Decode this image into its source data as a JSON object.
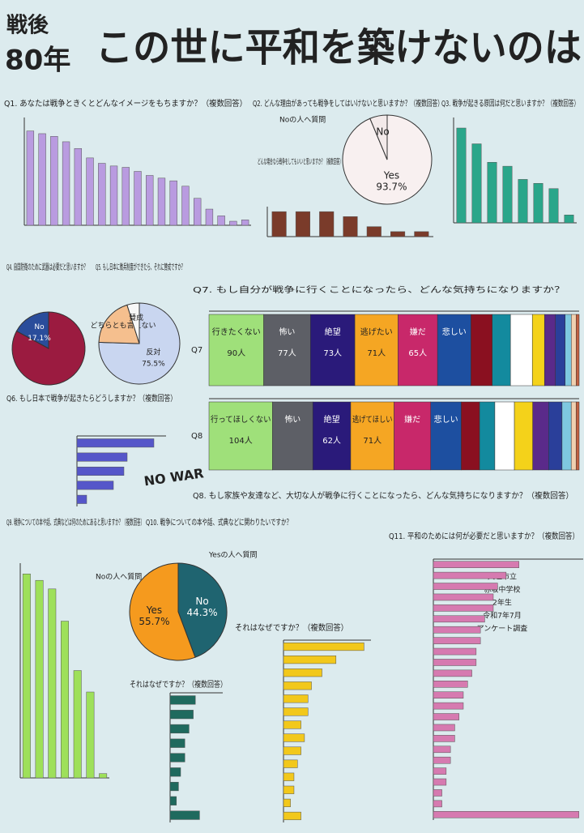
{
  "header": {
    "line1": "戦後",
    "line2": "80年",
    "main": "この世に平和を築けないのは"
  },
  "notes": {
    "q2_no": "Noの人へ質問",
    "q2_sub": "どんな場合なら戦争をしてもいいと思いますか？（複数回答）",
    "q6_stamp": "NO WAR",
    "q10_yes": "Yesの人へ質問",
    "q10_no": "Noの人へ質問",
    "school": [
      "大垣市立",
      "赤坂中学校",
      "2年生",
      "令和7年7月",
      "アンケート調査"
    ]
  },
  "chart_data": [
    {
      "type": "bar",
      "title": "Q1. あなたは戦争ときくとどんなイメージをもちますか？（複数回答）",
      "color": "#b99be0",
      "values": [
        70,
        68,
        66,
        62,
        57,
        50,
        46,
        44,
        43,
        40,
        37,
        35,
        33,
        29,
        20,
        12,
        7,
        3,
        4
      ],
      "ylim": [
        0,
        80
      ]
    },
    {
      "type": "pie",
      "title": "Q2. どんな理由があっても戦争をしてはいけないと思いますか？（複数回答）",
      "categories": [
        "Yes",
        "No"
      ],
      "values": [
        93.7,
        6.3
      ],
      "value_labels": [
        "93.7%",
        null
      ],
      "colors": [
        "#f8f0f0",
        "#f3eaea"
      ]
    },
    {
      "type": "bar",
      "color": "#7a3b2a",
      "values": [
        5,
        5,
        5,
        4,
        2,
        1,
        1
      ],
      "ylim": [
        0,
        6
      ]
    },
    {
      "type": "bar",
      "title": "Q3. 戦争が起きる原因は何だと思いますか？（複数回答）",
      "color": "#2aa68a",
      "values": [
        72,
        60,
        46,
        43,
        33,
        30,
        26,
        6
      ],
      "ylim": [
        0,
        80
      ]
    },
    {
      "type": "pie",
      "title": "Q4. 自国防衛のために武器は必要だと思いますか？",
      "categories": [
        null,
        "No"
      ],
      "values": [
        82.9,
        17.1
      ],
      "value_labels": [
        null,
        "17.1%"
      ],
      "colors": [
        "#9b1b40",
        "#2a4d9b"
      ]
    },
    {
      "type": "pie",
      "title": "Q5. もし日本に徴兵制度ができたら、それに賛成ですか？",
      "categories": [
        "反対",
        "どちらとも言えない",
        "賛成"
      ],
      "values": [
        75.5,
        19.6,
        4.9
      ],
      "value_labels": [
        "75.5%",
        null,
        null
      ],
      "colors": [
        "#c9d6f0",
        "#f5bf8e",
        "#f7f7f7"
      ]
    },
    {
      "type": "hbar",
      "title": "Q6. もし日本で戦争が起きたらどうしますか？（複数回答）",
      "color": "#5556c9",
      "values": [
        95,
        62,
        58,
        45,
        12
      ],
      "xlim": [
        0,
        110
      ]
    },
    {
      "type": "stacked_hbar",
      "title": "Q7. もし自分が戦争に行くことになったら、どんな気持ちになりますか？",
      "row_label": "Q7",
      "categories": [
        "行きたくない",
        "怖い",
        "絶望",
        "逃げたい",
        "嫌だ",
        "悲しい",
        null,
        null,
        null,
        null,
        null,
        null,
        null,
        null,
        null
      ],
      "values": [
        90,
        77,
        73,
        71,
        65,
        55,
        35,
        30,
        36,
        20,
        18,
        16,
        10,
        8,
        5
      ],
      "value_labels": [
        "90人",
        "77人",
        "73人",
        "71人",
        "65人",
        null,
        null,
        null,
        null,
        null,
        null,
        null,
        null,
        null,
        null
      ],
      "colors": [
        "#9fe07a",
        "#5d5f66",
        "#2a1a7a",
        "#f5a623",
        "#c8286a",
        "#1d4fa0",
        "#8a1020",
        "#138a9e",
        "#ffffff",
        "#f4d21a",
        "#5a2a8a",
        "#2a3f9a",
        "#7ec8e0",
        "#f0d0b0",
        "#c06040"
      ]
    },
    {
      "type": "stacked_hbar",
      "title": "Q8. もし家族や友達など、大切な人が戦争に行くことになったら、どんな気持ちになりますか？（複数回答）",
      "row_label": "Q8",
      "categories": [
        "行ってほしくない",
        "怖い",
        "絶望",
        "逃げてほしい",
        "嫌だ",
        "悲しい",
        null,
        null,
        null,
        null,
        null,
        null,
        null,
        null,
        null
      ],
      "values": [
        104,
        66,
        62,
        71,
        60,
        50,
        30,
        25,
        32,
        30,
        26,
        22,
        15,
        8,
        5
      ],
      "value_labels": [
        "104人",
        null,
        "62人",
        "71人",
        null,
        null,
        null,
        null,
        null,
        null,
        null,
        null,
        null,
        null,
        null
      ],
      "colors": [
        "#9fe07a",
        "#5d5f66",
        "#2a1a7a",
        "#f5a623",
        "#c8286a",
        "#1d4fa0",
        "#8a1020",
        "#138a9e",
        "#ffffff",
        "#f4d21a",
        "#5a2a8a",
        "#2a3f9a",
        "#7ec8e0",
        "#f0d0b0",
        "#c06040"
      ]
    },
    {
      "type": "bar",
      "title": "Q9. 戦争についての本や話、式典などは何のためにあると思いますか？（複数回答）",
      "color": "#9ee05a",
      "values": [
        95,
        92,
        88,
        73,
        50,
        40,
        2
      ],
      "ylim": [
        0,
        100
      ]
    },
    {
      "type": "pie",
      "title": "Q10. 戦争についての本や話、式典などに関わりたいですか？",
      "categories": [
        "No",
        "Yes"
      ],
      "values": [
        44.3,
        55.7
      ],
      "value_labels": [
        "44.3%",
        "55.7%"
      ],
      "colors": [
        "#1f6470",
        "#f59a1e"
      ]
    },
    {
      "type": "hbar",
      "title": "それはなぜですか？（複数回答）",
      "color": "#f2c81b",
      "values": [
        23,
        15,
        11,
        8,
        7,
        7,
        5,
        6,
        5,
        4,
        3,
        3,
        2,
        5
      ],
      "xlim": [
        0,
        25
      ]
    },
    {
      "type": "hbar",
      "title": "それはなぜですか？（複数回答）",
      "color": "#1f6a5e",
      "values": [
        12,
        11,
        9,
        7,
        7,
        5,
        4,
        3,
        14
      ],
      "xlim": [
        0,
        25
      ]
    },
    {
      "type": "hbar",
      "title": "Q11. 平和のためには何が必要だと思いますか？（複数回答）",
      "color": "#d67ab0",
      "values": [
        20,
        17,
        15,
        14,
        14,
        12,
        11,
        11,
        10,
        10,
        9,
        8,
        7,
        7,
        6,
        5,
        5,
        4,
        4,
        3,
        3,
        2,
        2,
        34
      ],
      "xlim": [
        0,
        35
      ]
    }
  ]
}
